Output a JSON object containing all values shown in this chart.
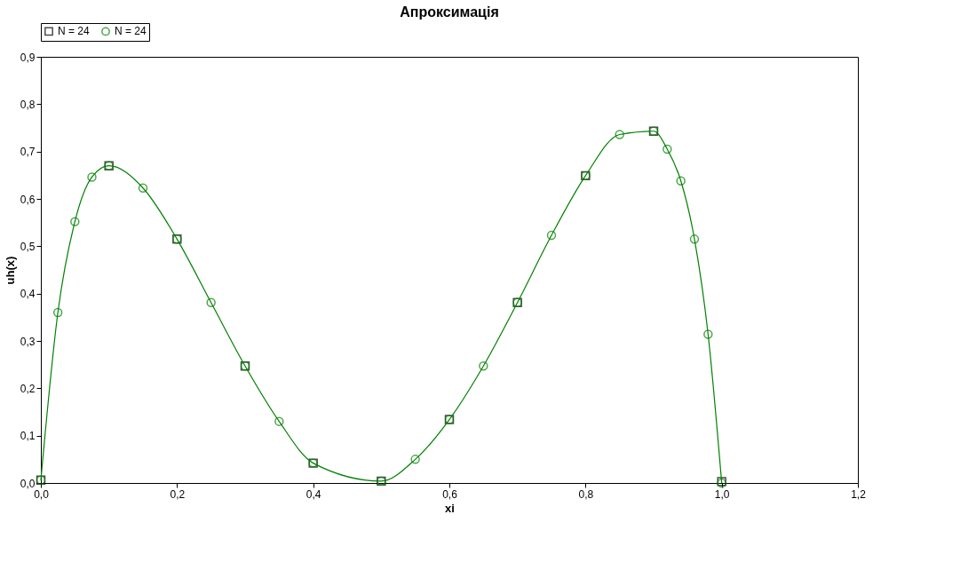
{
  "chart_data": {
    "type": "line",
    "title": "Апроксимація",
    "xlabel": "xi",
    "ylabel": "uh(x)",
    "xlim": [
      0,
      1.2
    ],
    "ylim": [
      0,
      0.9
    ],
    "xticks": [
      {
        "value": 0,
        "label": "0,0"
      },
      {
        "value": 0.2,
        "label": "0,2"
      },
      {
        "value": 0.4,
        "label": "0,4"
      },
      {
        "value": 0.6,
        "label": "0,6"
      },
      {
        "value": 0.8,
        "label": "0,8"
      },
      {
        "value": 1.0,
        "label": "1,0"
      },
      {
        "value": 1.2,
        "label": "1,2"
      }
    ],
    "yticks": [
      {
        "value": 0,
        "label": "0,0"
      },
      {
        "value": 0.1,
        "label": "0,1"
      },
      {
        "value": 0.2,
        "label": "0,2"
      },
      {
        "value": 0.3,
        "label": "0,3"
      },
      {
        "value": 0.4,
        "label": "0,4"
      },
      {
        "value": 0.5,
        "label": "0,5"
      },
      {
        "value": 0.6,
        "label": "0,6"
      },
      {
        "value": 0.7,
        "label": "0,7"
      },
      {
        "value": 0.8,
        "label": "0,8"
      },
      {
        "value": 0.9,
        "label": "0,9"
      }
    ],
    "grid": false,
    "legend": "top left",
    "series": [
      {
        "name": "N = 24",
        "type": "scatter",
        "marker": "square",
        "color": "#000000",
        "x": [
          0,
          0.1,
          0.2,
          0.3,
          0.4,
          0.5,
          0.6,
          0.7,
          0.8,
          0.9,
          1.0
        ],
        "values": [
          0.006,
          0.67,
          0.515,
          0.247,
          0.042,
          0.004,
          0.134,
          0.381,
          0.649,
          0.743,
          0.003
        ]
      },
      {
        "name": "N = 24",
        "type": "line",
        "marker": "circle",
        "color": "#008000",
        "x": [
          0,
          0.025,
          0.05,
          0.075,
          0.1,
          0.15,
          0.2,
          0.25,
          0.3,
          0.35,
          0.4,
          0.5,
          0.55,
          0.6,
          0.65,
          0.7,
          0.75,
          0.8,
          0.85,
          0.9,
          0.92,
          0.94,
          0.96,
          0.98,
          1.0
        ],
        "values": [
          0.006,
          0.36,
          0.552,
          0.646,
          0.67,
          0.623,
          0.515,
          0.381,
          0.247,
          0.13,
          0.042,
          0.004,
          0.05,
          0.134,
          0.247,
          0.381,
          0.523,
          0.649,
          0.736,
          0.743,
          0.705,
          0.638,
          0.515,
          0.314,
          0.0
        ]
      }
    ]
  }
}
